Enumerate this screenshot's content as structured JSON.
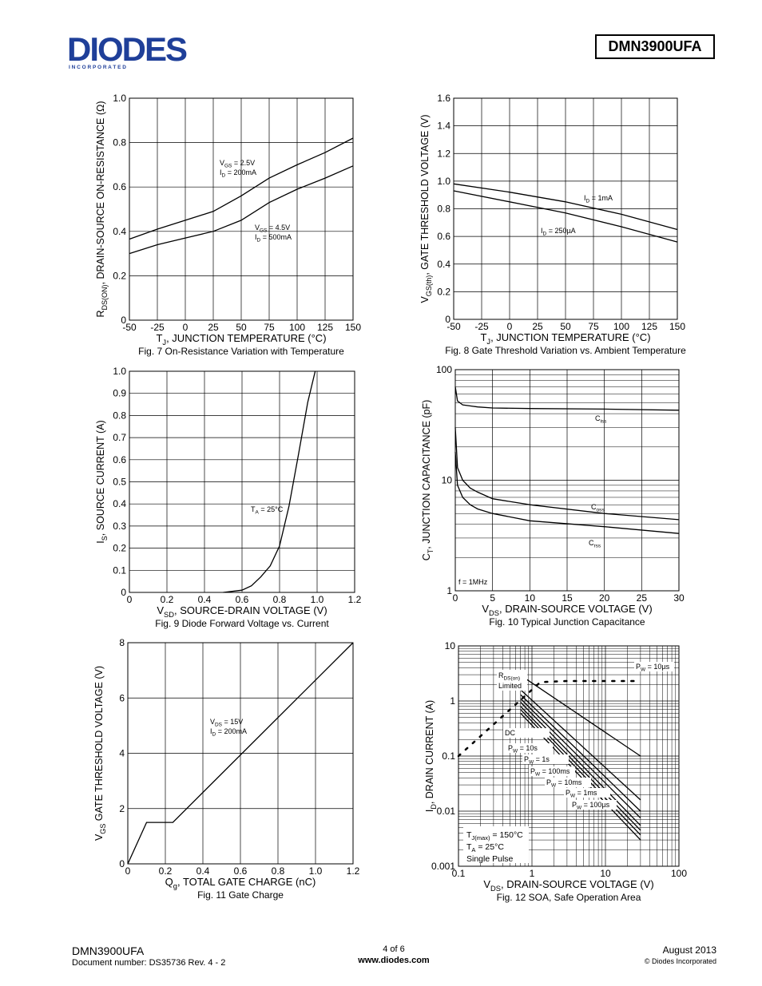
{
  "header": {
    "logo_text": "DIODES",
    "logo_sub": "I N C O R P O R A T E D",
    "part_number": "DMN3900UFA"
  },
  "footer": {
    "part": "DMN3900UFA",
    "doc": "Document number: DS35736 Rev. 4 - 2",
    "page": "4 of 6",
    "url": "www.diodes.com",
    "date": "August 2013",
    "copyright": "© Diodes Incorporated"
  },
  "chart_data": [
    {
      "id": "fig7",
      "type": "line",
      "title": "Fig. 7 On-Resistance Variation with Temperature",
      "xlabel_main": "T",
      "xlabel_sub": "J",
      "xlabel_rest": ", JUNCTION TEMPERATURE (°C)",
      "ylabel_main": "R",
      "ylabel_sub": "DS(ON)",
      "ylabel_rest": ", DRAIN-SOURCE ON-RESISTANCE (Ω)",
      "xlim": [
        -50,
        150
      ],
      "ylim": [
        0,
        1.0
      ],
      "xticks": [
        "-50",
        "-25",
        "0",
        "25",
        "50",
        "75",
        "100",
        "125",
        "150"
      ],
      "yticks": [
        "0",
        "0.2",
        "0.4",
        "0.6",
        "0.8",
        "1.0"
      ],
      "series": [
        {
          "x": [
            -50,
            -25,
            0,
            25,
            50,
            75,
            100,
            125,
            150
          ],
          "y": [
            0.365,
            0.41,
            0.45,
            0.49,
            0.56,
            0.64,
            0.7,
            0.755,
            0.82
          ],
          "label_lines": [
            [
              "V",
              "GS",
              " = 2.5V"
            ],
            [
              "I",
              "D",
              " = 200mA"
            ]
          ]
        },
        {
          "x": [
            -50,
            -25,
            0,
            25,
            50,
            75,
            100,
            125,
            150
          ],
          "y": [
            0.3,
            0.34,
            0.37,
            0.4,
            0.45,
            0.53,
            0.59,
            0.64,
            0.695
          ],
          "label_lines": [
            [
              "V",
              "GS",
              " = 4.5V"
            ],
            [
              "I",
              "D",
              " = 500mA"
            ]
          ]
        }
      ]
    },
    {
      "id": "fig8",
      "type": "line",
      "title": "Fig. 8 Gate Threshold Variation vs. Ambient Temperature",
      "xlabel_main": "T",
      "xlabel_sub": "J",
      "xlabel_rest": ", JUNCTION TEMPERATURE (°C)",
      "ylabel_main": "V",
      "ylabel_sub": "GS(th)",
      "ylabel_rest": ", GATE THRESHOLD VOLTAGE (V)",
      "xlim": [
        -50,
        150
      ],
      "ylim": [
        0,
        1.6
      ],
      "xticks": [
        "-50",
        "-25",
        "0",
        "25",
        "50",
        "75",
        "100",
        "125",
        "150"
      ],
      "yticks": [
        "0",
        "0.2",
        "0.4",
        "0.6",
        "0.8",
        "1.0",
        "1.2",
        "1.4",
        "1.6"
      ],
      "series": [
        {
          "x": [
            -50,
            0,
            50,
            100,
            150
          ],
          "y": [
            0.98,
            0.92,
            0.85,
            0.76,
            0.65
          ],
          "label_lines": [
            [
              "I",
              "D",
              " = 1mA"
            ]
          ]
        },
        {
          "x": [
            -50,
            0,
            50,
            100,
            150
          ],
          "y": [
            0.93,
            0.85,
            0.77,
            0.67,
            0.56
          ],
          "label_lines": [
            [
              "I",
              "D",
              " = 250µA"
            ]
          ]
        }
      ]
    },
    {
      "id": "fig9",
      "type": "line",
      "title": "Fig. 9 Diode Forward Voltage vs. Current",
      "xlabel_main": "V",
      "xlabel_sub": "SD",
      "xlabel_rest": ", SOURCE-DRAIN VOLTAGE (V)",
      "ylabel_main": "I",
      "ylabel_sub": "S",
      "ylabel_rest": ", SOURCE CURRENT (A)",
      "xlim": [
        0,
        1.2
      ],
      "ylim": [
        0,
        1.0
      ],
      "xticks": [
        "0",
        "0.2",
        "0.4",
        "0.6",
        "0.8",
        "1.0",
        "1.2"
      ],
      "yticks": [
        "0",
        "0.1",
        "0.2",
        "0.3",
        "0.4",
        "0.5",
        "0.6",
        "0.7",
        "0.8",
        "0.9",
        "1.0"
      ],
      "series": [
        {
          "x": [
            0.5,
            0.6,
            0.65,
            0.7,
            0.75,
            0.8,
            0.85,
            0.9,
            0.95,
            0.99
          ],
          "y": [
            0.0,
            0.01,
            0.03,
            0.07,
            0.12,
            0.21,
            0.39,
            0.62,
            0.86,
            1.0
          ],
          "label_lines": [
            [
              "T",
              "A",
              " = 25°C"
            ]
          ]
        }
      ]
    },
    {
      "id": "fig10",
      "type": "line",
      "title": "Fig. 10 Typical Junction Capacitance",
      "xlabel_main": "V",
      "xlabel_sub": "DS",
      "xlabel_rest": ", DRAIN-SOURCE VOLTAGE (V)",
      "ylabel_main": "C",
      "ylabel_sub": "T",
      "ylabel_rest": ", JUNCTION CAPACITANCE (pF)",
      "xlim": [
        0,
        30
      ],
      "ylim": [
        1,
        100
      ],
      "yscale": "log",
      "xticks": [
        "0",
        "5",
        "10",
        "15",
        "20",
        "25",
        "30"
      ],
      "yticks": [
        "1",
        "10",
        "100"
      ],
      "annotation": "f = 1MHz",
      "series": [
        {
          "x": [
            0,
            0.3,
            1,
            3,
            5,
            10,
            20,
            30
          ],
          "y": [
            70,
            52,
            48,
            46,
            45,
            44.5,
            44,
            43
          ],
          "label_lines": [
            [
              "C",
              "iss",
              ""
            ]
          ]
        },
        {
          "x": [
            0,
            0.3,
            1,
            2,
            3,
            5,
            10,
            20,
            30
          ],
          "y": [
            30,
            13,
            10,
            8.5,
            7.8,
            6.8,
            6,
            5,
            4.4
          ],
          "label_lines": [
            [
              "C",
              "oss",
              ""
            ]
          ]
        },
        {
          "x": [
            0,
            0.3,
            1,
            2,
            3,
            5,
            10,
            20,
            30
          ],
          "y": [
            18,
            9,
            7,
            6,
            5.5,
            5,
            4.3,
            3.8,
            3.3
          ],
          "label_lines": [
            [
              "C",
              "rss",
              ""
            ]
          ]
        }
      ]
    },
    {
      "id": "fig11",
      "type": "line",
      "title": "Fig. 11 Gate Charge",
      "xlabel_main": "Q",
      "xlabel_sub": "g",
      "xlabel_rest": ", TOTAL GATE CHARGE  (nC)",
      "ylabel_main": "V",
      "ylabel_sub": "GS",
      "ylabel_rest": " GATE THRESHOLD VOLTAGE (V)",
      "xlim": [
        0,
        1.2
      ],
      "ylim": [
        0,
        8
      ],
      "xticks": [
        "0",
        "0.2",
        "0.4",
        "0.6",
        "0.8",
        "1.0",
        "1.2"
      ],
      "yticks": [
        "0",
        "2",
        "4",
        "6",
        "8"
      ],
      "series": [
        {
          "x": [
            0,
            0.1,
            0.24,
            1.2
          ],
          "y": [
            0,
            1.5,
            1.5,
            8.0
          ],
          "label_lines": [
            [
              "V",
              "DS",
              " = 15V"
            ],
            [
              "I",
              "D",
              " = 200mA"
            ]
          ]
        }
      ]
    },
    {
      "id": "fig12",
      "type": "line",
      "title": "Fig. 12 SOA, Safe Operation Area",
      "xlabel_main": "V",
      "xlabel_sub": "DS",
      "xlabel_rest": ", DRAIN-SOURCE VOLTAGE (V)",
      "ylabel_main": "I",
      "ylabel_sub": "D",
      "ylabel_rest": ", DRAIN CURRENT (A)",
      "xlim": [
        0.1,
        100
      ],
      "ylim": [
        0.001,
        10
      ],
      "xscale": "log",
      "yscale": "log",
      "xticks": [
        "0.1",
        "1",
        "10",
        "100"
      ],
      "yticks": [
        "0.001",
        "0.01",
        "0.1",
        "1",
        "10"
      ],
      "legend_lines": [
        [
          "T",
          "J(max)",
          " = 150°C"
        ],
        [
          "T",
          "A",
          " = 25°C"
        ],
        [
          "Single Pulse",
          "",
          ""
        ]
      ],
      "rds_label": [
        [
          "R",
          "DS(on)",
          ""
        ],
        [
          "Limited",
          "",
          ""
        ]
      ],
      "pulse_labels": [
        [
          [
            "P",
            "W",
            " = 10µs"
          ]
        ],
        [
          [
            "DC",
            "",
            ""
          ]
        ],
        [
          [
            "P",
            "W",
            " = 10s"
          ]
        ],
        [
          [
            "P",
            "W",
            " = 1s"
          ]
        ],
        [
          [
            "P",
            "W",
            " = 100ms"
          ]
        ],
        [
          [
            "P",
            "W",
            " = 10ms"
          ]
        ],
        [
          [
            "P",
            "W",
            " = 1ms"
          ]
        ],
        [
          [
            "P",
            "W",
            " = 100µs"
          ]
        ]
      ],
      "rds_limit": {
        "x": [
          0.1,
          1.3,
          3,
          30
        ],
        "y": [
          0.1,
          2.2,
          2.3,
          2.3
        ]
      },
      "series": [
        {
          "name_key": "10us",
          "x": [
            0.8,
            30
          ],
          "y": [
            2.6,
            0.1
          ]
        },
        {
          "name_key": "100us",
          "x": [
            0.7,
            30
          ],
          "y": [
            1.6,
            0.016
          ]
        },
        {
          "name_key": "1ms",
          "x": [
            0.7,
            30
          ],
          "y": [
            1.3,
            0.01
          ]
        },
        {
          "name_key": "10ms",
          "x": [
            0.7,
            30
          ],
          "y": [
            1.1,
            0.0075
          ]
        },
        {
          "name_key": "100ms",
          "x": [
            0.7,
            30
          ],
          "y": [
            0.95,
            0.0055
          ]
        },
        {
          "name_key": "1s",
          "x": [
            0.7,
            30
          ],
          "y": [
            0.8,
            0.0045
          ]
        },
        {
          "name_key": "10s",
          "x": [
            0.7,
            30
          ],
          "y": [
            0.7,
            0.0037
          ]
        },
        {
          "name_key": "DC",
          "x": [
            0.7,
            30
          ],
          "y": [
            0.6,
            0.003
          ]
        }
      ]
    }
  ]
}
